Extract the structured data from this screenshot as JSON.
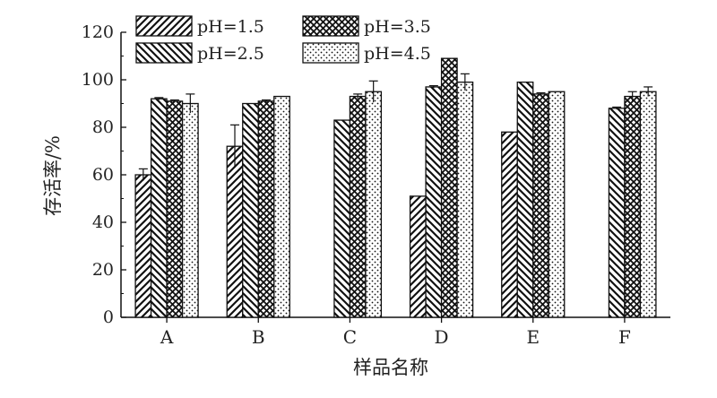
{
  "chart_data": {
    "type": "bar",
    "xlabel": "样品名称",
    "ylabel": "存活率/%",
    "ylim": [
      0,
      120
    ],
    "yticks": [
      0,
      20,
      40,
      60,
      80,
      100,
      120
    ],
    "categories": [
      "A",
      "B",
      "C",
      "D",
      "E",
      "F"
    ],
    "legend_position": "top",
    "series": [
      {
        "name": "pH=1.5",
        "pattern": "diagonal-right",
        "values": [
          60,
          72,
          null,
          51,
          78,
          null
        ],
        "errors": [
          2.5,
          9,
          null,
          0,
          0,
          null
        ]
      },
      {
        "name": "pH=2.5",
        "pattern": "diagonal-left",
        "values": [
          92,
          90,
          83,
          97,
          99,
          88
        ],
        "errors": [
          0.5,
          0,
          0,
          0.5,
          0,
          0.5
        ]
      },
      {
        "name": "pH=3.5",
        "pattern": "crosshatch",
        "values": [
          91,
          91,
          93,
          109,
          94,
          93
        ],
        "errors": [
          0.5,
          0.5,
          1,
          0,
          0.5,
          2
        ]
      },
      {
        "name": "pH=4.5",
        "pattern": "dots",
        "values": [
          90,
          93,
          95,
          99,
          95,
          95
        ],
        "errors": [
          4,
          0,
          4.5,
          3.5,
          0,
          2
        ]
      }
    ]
  }
}
